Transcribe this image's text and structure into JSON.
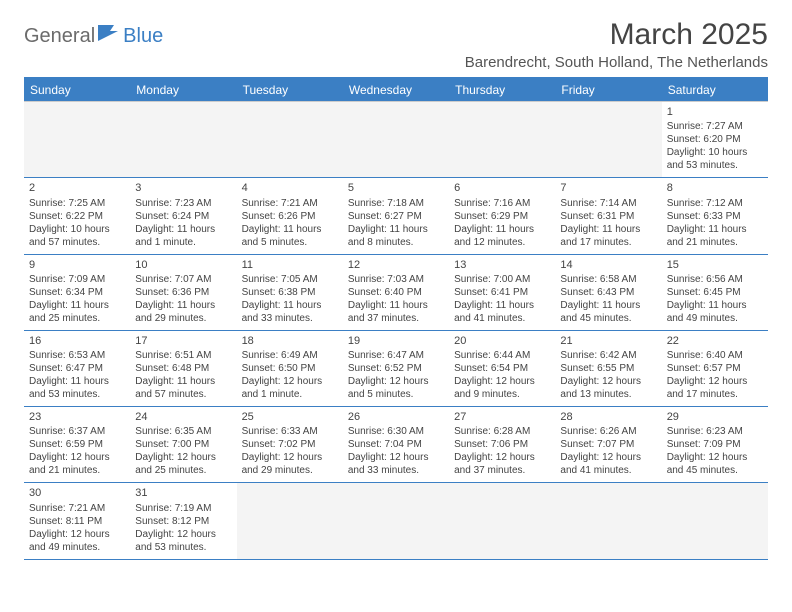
{
  "logo": {
    "text1": "General",
    "text2": "Blue"
  },
  "title": "March 2025",
  "subtitle": "Barendrecht, South Holland, The Netherlands",
  "colors": {
    "header_bg": "#3b7fc4",
    "header_text": "#ffffff",
    "body_text": "#444444",
    "other_month_bg": "#f4f4f4",
    "border": "#3b7fc4",
    "background": "#ffffff"
  },
  "day_headers": [
    "Sunday",
    "Monday",
    "Tuesday",
    "Wednesday",
    "Thursday",
    "Friday",
    "Saturday"
  ],
  "weeks": [
    [
      {
        "blank": true
      },
      {
        "blank": true
      },
      {
        "blank": true
      },
      {
        "blank": true
      },
      {
        "blank": true
      },
      {
        "blank": true
      },
      {
        "n": "1",
        "sr": "Sunrise: 7:27 AM",
        "ss": "Sunset: 6:20 PM",
        "dl": "Daylight: 10 hours and 53 minutes."
      }
    ],
    [
      {
        "n": "2",
        "sr": "Sunrise: 7:25 AM",
        "ss": "Sunset: 6:22 PM",
        "dl": "Daylight: 10 hours and 57 minutes."
      },
      {
        "n": "3",
        "sr": "Sunrise: 7:23 AM",
        "ss": "Sunset: 6:24 PM",
        "dl": "Daylight: 11 hours and 1 minute."
      },
      {
        "n": "4",
        "sr": "Sunrise: 7:21 AM",
        "ss": "Sunset: 6:26 PM",
        "dl": "Daylight: 11 hours and 5 minutes."
      },
      {
        "n": "5",
        "sr": "Sunrise: 7:18 AM",
        "ss": "Sunset: 6:27 PM",
        "dl": "Daylight: 11 hours and 8 minutes."
      },
      {
        "n": "6",
        "sr": "Sunrise: 7:16 AM",
        "ss": "Sunset: 6:29 PM",
        "dl": "Daylight: 11 hours and 12 minutes."
      },
      {
        "n": "7",
        "sr": "Sunrise: 7:14 AM",
        "ss": "Sunset: 6:31 PM",
        "dl": "Daylight: 11 hours and 17 minutes."
      },
      {
        "n": "8",
        "sr": "Sunrise: 7:12 AM",
        "ss": "Sunset: 6:33 PM",
        "dl": "Daylight: 11 hours and 21 minutes."
      }
    ],
    [
      {
        "n": "9",
        "sr": "Sunrise: 7:09 AM",
        "ss": "Sunset: 6:34 PM",
        "dl": "Daylight: 11 hours and 25 minutes."
      },
      {
        "n": "10",
        "sr": "Sunrise: 7:07 AM",
        "ss": "Sunset: 6:36 PM",
        "dl": "Daylight: 11 hours and 29 minutes."
      },
      {
        "n": "11",
        "sr": "Sunrise: 7:05 AM",
        "ss": "Sunset: 6:38 PM",
        "dl": "Daylight: 11 hours and 33 minutes."
      },
      {
        "n": "12",
        "sr": "Sunrise: 7:03 AM",
        "ss": "Sunset: 6:40 PM",
        "dl": "Daylight: 11 hours and 37 minutes."
      },
      {
        "n": "13",
        "sr": "Sunrise: 7:00 AM",
        "ss": "Sunset: 6:41 PM",
        "dl": "Daylight: 11 hours and 41 minutes."
      },
      {
        "n": "14",
        "sr": "Sunrise: 6:58 AM",
        "ss": "Sunset: 6:43 PM",
        "dl": "Daylight: 11 hours and 45 minutes."
      },
      {
        "n": "15",
        "sr": "Sunrise: 6:56 AM",
        "ss": "Sunset: 6:45 PM",
        "dl": "Daylight: 11 hours and 49 minutes."
      }
    ],
    [
      {
        "n": "16",
        "sr": "Sunrise: 6:53 AM",
        "ss": "Sunset: 6:47 PM",
        "dl": "Daylight: 11 hours and 53 minutes."
      },
      {
        "n": "17",
        "sr": "Sunrise: 6:51 AM",
        "ss": "Sunset: 6:48 PM",
        "dl": "Daylight: 11 hours and 57 minutes."
      },
      {
        "n": "18",
        "sr": "Sunrise: 6:49 AM",
        "ss": "Sunset: 6:50 PM",
        "dl": "Daylight: 12 hours and 1 minute."
      },
      {
        "n": "19",
        "sr": "Sunrise: 6:47 AM",
        "ss": "Sunset: 6:52 PM",
        "dl": "Daylight: 12 hours and 5 minutes."
      },
      {
        "n": "20",
        "sr": "Sunrise: 6:44 AM",
        "ss": "Sunset: 6:54 PM",
        "dl": "Daylight: 12 hours and 9 minutes."
      },
      {
        "n": "21",
        "sr": "Sunrise: 6:42 AM",
        "ss": "Sunset: 6:55 PM",
        "dl": "Daylight: 12 hours and 13 minutes."
      },
      {
        "n": "22",
        "sr": "Sunrise: 6:40 AM",
        "ss": "Sunset: 6:57 PM",
        "dl": "Daylight: 12 hours and 17 minutes."
      }
    ],
    [
      {
        "n": "23",
        "sr": "Sunrise: 6:37 AM",
        "ss": "Sunset: 6:59 PM",
        "dl": "Daylight: 12 hours and 21 minutes."
      },
      {
        "n": "24",
        "sr": "Sunrise: 6:35 AM",
        "ss": "Sunset: 7:00 PM",
        "dl": "Daylight: 12 hours and 25 minutes."
      },
      {
        "n": "25",
        "sr": "Sunrise: 6:33 AM",
        "ss": "Sunset: 7:02 PM",
        "dl": "Daylight: 12 hours and 29 minutes."
      },
      {
        "n": "26",
        "sr": "Sunrise: 6:30 AM",
        "ss": "Sunset: 7:04 PM",
        "dl": "Daylight: 12 hours and 33 minutes."
      },
      {
        "n": "27",
        "sr": "Sunrise: 6:28 AM",
        "ss": "Sunset: 7:06 PM",
        "dl": "Daylight: 12 hours and 37 minutes."
      },
      {
        "n": "28",
        "sr": "Sunrise: 6:26 AM",
        "ss": "Sunset: 7:07 PM",
        "dl": "Daylight: 12 hours and 41 minutes."
      },
      {
        "n": "29",
        "sr": "Sunrise: 6:23 AM",
        "ss": "Sunset: 7:09 PM",
        "dl": "Daylight: 12 hours and 45 minutes."
      }
    ],
    [
      {
        "n": "30",
        "sr": "Sunrise: 7:21 AM",
        "ss": "Sunset: 8:11 PM",
        "dl": "Daylight: 12 hours and 49 minutes."
      },
      {
        "n": "31",
        "sr": "Sunrise: 7:19 AM",
        "ss": "Sunset: 8:12 PM",
        "dl": "Daylight: 12 hours and 53 minutes."
      },
      {
        "blank": true
      },
      {
        "blank": true
      },
      {
        "blank": true
      },
      {
        "blank": true
      },
      {
        "blank": true
      }
    ]
  ]
}
